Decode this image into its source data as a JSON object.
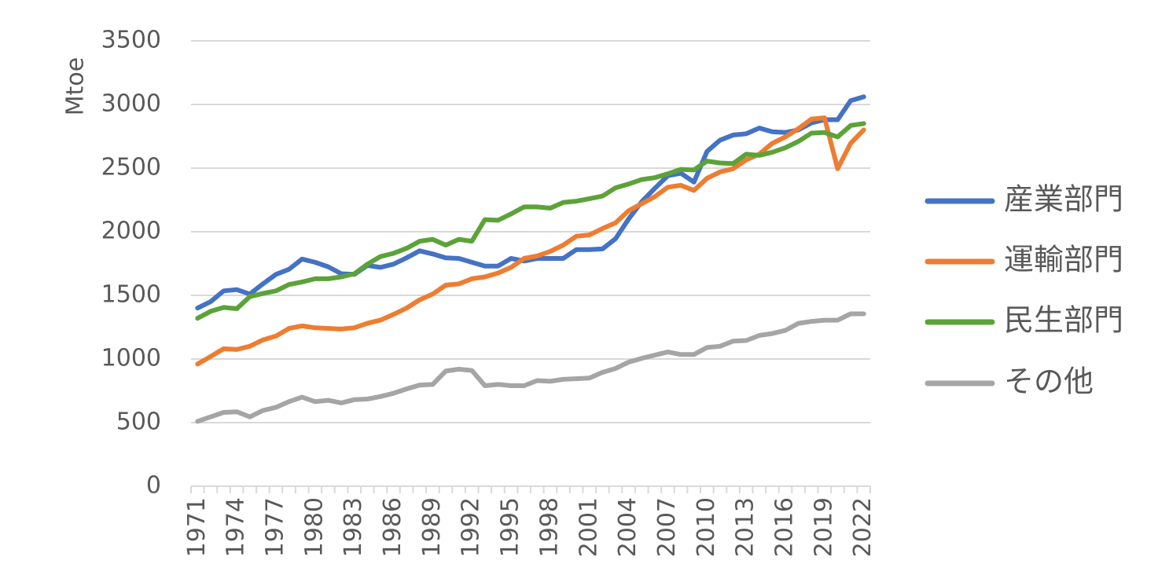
{
  "chart_data": {
    "type": "line",
    "title": "",
    "xlabel": "",
    "ylabel": "Mtoe",
    "ylim": [
      0,
      3500
    ],
    "yticks": [
      "0",
      "500",
      "1000",
      "1500",
      "2000",
      "2500",
      "3000",
      "3500"
    ],
    "grid": true,
    "legend_position": "right",
    "x": [
      1971,
      1972,
      1973,
      1974,
      1975,
      1976,
      1977,
      1978,
      1979,
      1980,
      1981,
      1982,
      1983,
      1984,
      1985,
      1986,
      1987,
      1988,
      1989,
      1990,
      1991,
      1992,
      1993,
      1994,
      1995,
      1996,
      1997,
      1998,
      1999,
      2000,
      2001,
      2002,
      2003,
      2004,
      2005,
      2006,
      2007,
      2008,
      2009,
      2010,
      2011,
      2012,
      2013,
      2014,
      2015,
      2016,
      2017,
      2018,
      2019,
      2020,
      2021,
      2022
    ],
    "xtick_labels": [
      "1971",
      "1974",
      "1977",
      "1980",
      "1983",
      "1986",
      "1989",
      "1992",
      "1995",
      "1998",
      "2001",
      "2004",
      "2007",
      "2010",
      "2013",
      "2016",
      "2019",
      "2022"
    ],
    "series": [
      {
        "name": "産業部門",
        "color": "#4472C4",
        "values": [
          1400,
          1450,
          1535,
          1545,
          1510,
          1590,
          1665,
          1705,
          1785,
          1760,
          1725,
          1670,
          1665,
          1735,
          1720,
          1745,
          1795,
          1850,
          1825,
          1795,
          1790,
          1760,
          1730,
          1730,
          1790,
          1770,
          1790,
          1790,
          1790,
          1860,
          1860,
          1865,
          1945,
          2100,
          2235,
          2340,
          2440,
          2460,
          2390,
          2630,
          2720,
          2760,
          2770,
          2815,
          2785,
          2780,
          2800,
          2855,
          2880,
          2880,
          3030,
          3060
        ]
      },
      {
        "name": "運輸部門",
        "color": "#ED7D31",
        "values": [
          960,
          1020,
          1080,
          1075,
          1100,
          1150,
          1180,
          1240,
          1260,
          1245,
          1240,
          1235,
          1245,
          1280,
          1305,
          1350,
          1400,
          1465,
          1510,
          1580,
          1590,
          1630,
          1645,
          1675,
          1720,
          1790,
          1810,
          1845,
          1895,
          1965,
          1975,
          2025,
          2070,
          2165,
          2220,
          2275,
          2350,
          2365,
          2325,
          2420,
          2470,
          2495,
          2565,
          2610,
          2695,
          2745,
          2810,
          2885,
          2895,
          2495,
          2695,
          2800
        ]
      },
      {
        "name": "民生部門",
        "color": "#5BA339",
        "values": [
          1320,
          1375,
          1405,
          1395,
          1490,
          1515,
          1535,
          1585,
          1605,
          1630,
          1630,
          1645,
          1670,
          1745,
          1805,
          1830,
          1870,
          1925,
          1940,
          1895,
          1940,
          1925,
          2095,
          2090,
          2140,
          2195,
          2195,
          2185,
          2230,
          2240,
          2260,
          2280,
          2345,
          2375,
          2410,
          2425,
          2455,
          2490,
          2485,
          2555,
          2540,
          2535,
          2610,
          2600,
          2625,
          2660,
          2710,
          2775,
          2780,
          2745,
          2835,
          2850
        ]
      },
      {
        "name": "その他",
        "color": "#A5A5A5",
        "values": [
          510,
          545,
          580,
          585,
          545,
          595,
          620,
          665,
          700,
          665,
          675,
          655,
          680,
          685,
          705,
          730,
          765,
          795,
          800,
          905,
          920,
          910,
          790,
          800,
          790,
          790,
          830,
          825,
          840,
          845,
          850,
          895,
          925,
          975,
          1005,
          1030,
          1055,
          1035,
          1035,
          1090,
          1100,
          1140,
          1145,
          1185,
          1200,
          1225,
          1280,
          1295,
          1305,
          1305,
          1355,
          1355
        ]
      }
    ]
  }
}
